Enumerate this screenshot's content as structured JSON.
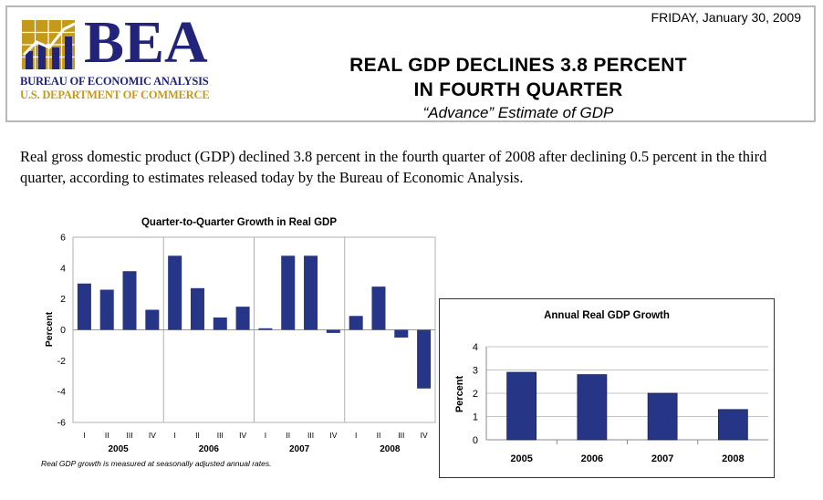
{
  "header": {
    "date": "FRIDAY, January 30, 2009",
    "title_line1": "REAL GDP DECLINES 3.8 PERCENT",
    "title_line2": "IN FOURTH QUARTER",
    "subtitle": "“Advance” Estimate of GDP"
  },
  "logo": {
    "wordmark": "BEA",
    "line1": "BUREAU OF ECONOMIC ANALYSIS",
    "line2": "U.S. DEPARTMENT OF COMMERCE",
    "colors": {
      "navy": "#21247a",
      "gold": "#c49a1a"
    }
  },
  "intro_text": "Real gross domestic product (GDP) declined 3.8 percent in the fourth quarter of 2008 after declining 0.5 percent in the third quarter, according to estimates released today by the Bureau of Economic Analysis.",
  "note": "Real GDP growth is measured at seasonally adjusted annual rates.",
  "chart_data": [
    {
      "type": "bar",
      "title": "Quarter-to-Quarter Growth in Real GDP",
      "ylabel": "Percent",
      "xlabel": "",
      "ylim": [
        -6,
        6
      ],
      "yticks": [
        "6",
        "4",
        "2",
        "0",
        "-2",
        "-4",
        "-6"
      ],
      "quarters": [
        "I",
        "II",
        "III",
        "IV",
        "I",
        "II",
        "III",
        "IV",
        "I",
        "II",
        "III",
        "IV",
        "I",
        "II",
        "III",
        "IV"
      ],
      "years": [
        "2005",
        "2006",
        "2007",
        "2008"
      ],
      "values": [
        3.0,
        2.6,
        3.8,
        1.3,
        4.8,
        2.7,
        0.8,
        1.5,
        0.1,
        4.8,
        4.8,
        -0.2,
        0.9,
        2.8,
        -0.5,
        -3.8
      ],
      "color": "#263585",
      "grid": "vertical separators between years"
    },
    {
      "type": "bar",
      "title": "Annual Real GDP Growth",
      "ylabel": "Percent",
      "xlabel": "",
      "ylim": [
        0,
        4
      ],
      "yticks": [
        "4",
        "3",
        "2",
        "1",
        "0"
      ],
      "categories": [
        "2005",
        "2006",
        "2007",
        "2008"
      ],
      "values": [
        2.9,
        2.8,
        2.0,
        1.3
      ],
      "color": "#263585",
      "grid": "horizontal"
    }
  ]
}
